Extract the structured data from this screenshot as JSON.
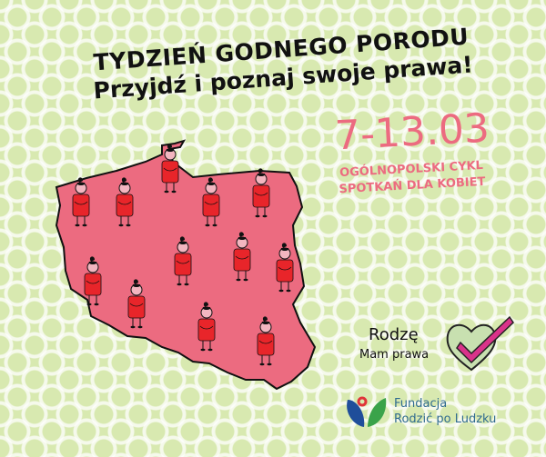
{
  "headline": {
    "line1": "TYDZIEŃ GODNEGO PORODU",
    "line2": "Przyjdź i poznaj swoje prawa!"
  },
  "event": {
    "dates": "7-13.03",
    "subtitle_line1": "OGÓLNOPOLSKI CYKL",
    "subtitle_line2": "SPOTKAŃ DLA KOBIET"
  },
  "badge": {
    "title": "Rodzę",
    "subtitle": "Mam prawa",
    "icon": "heart-checkmark-icon"
  },
  "organizer": {
    "line1": "Fundacja",
    "line2": "Rodzić po Ludzku"
  },
  "colors": {
    "background": "#d8e9b0",
    "map": "#ec6b80",
    "figure": "#e8252a",
    "accent": "#ec6b80"
  }
}
